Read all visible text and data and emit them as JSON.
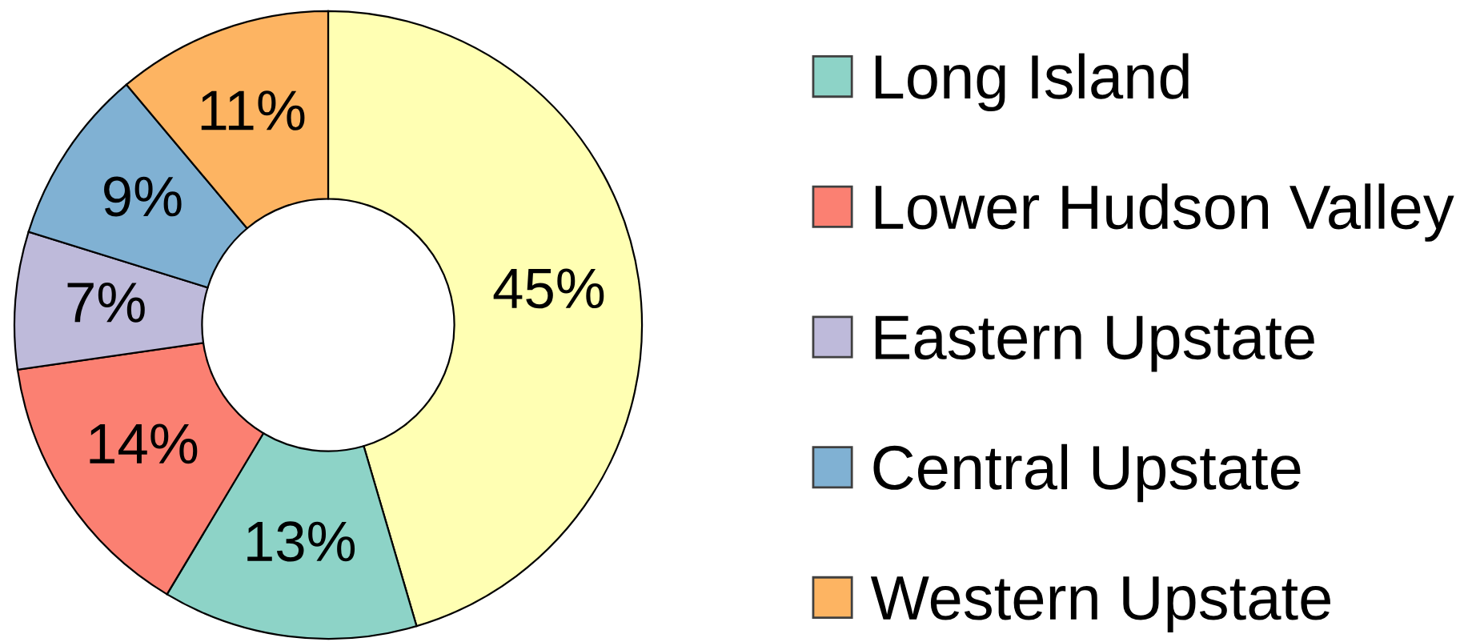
{
  "chart_data": {
    "type": "donut",
    "categories": [
      null,
      "Long Island",
      "Lower Hudson Valley",
      "Eastern Upstate",
      "Central Upstate",
      "Western Upstate"
    ],
    "values": [
      45,
      13,
      14,
      7,
      9,
      11
    ],
    "colors": [
      "#ffffb3",
      "#8dd3c7",
      "#fb8072",
      "#bebada",
      "#80b1d3",
      "#fdb462"
    ],
    "value_labels": [
      "45%",
      "13%",
      "14%",
      "7%",
      "9%",
      "11%"
    ],
    "legend": "right"
  }
}
